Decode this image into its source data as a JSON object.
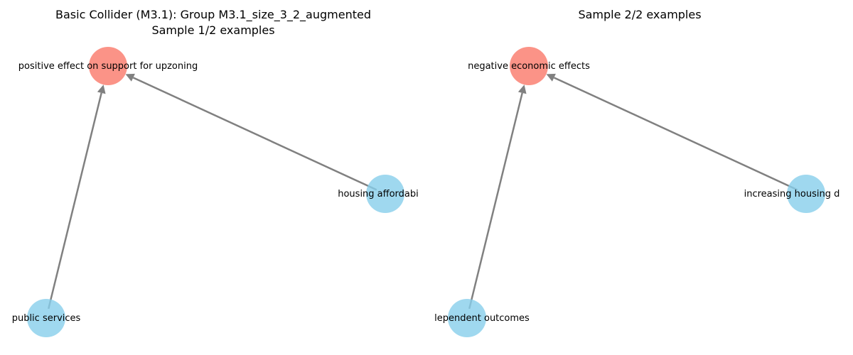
{
  "colors": {
    "effect_node": "#fa8072",
    "cause_node": "#87ceeb",
    "edge": "#808080"
  },
  "panels": [
    {
      "title_line1": "Basic Collider (M3.1): Group M3.1_size_3_2_augmented",
      "title_line2": "Sample 1/2 examples",
      "nodes": {
        "effect": "positive effect on support for upzoning",
        "cause_right": "housing affordabi",
        "cause_bottom": "public services"
      }
    },
    {
      "title_line1": "",
      "title_line2": "Sample 2/2 examples",
      "nodes": {
        "effect": "negative economic effects",
        "cause_right": "increasing housing d",
        "cause_bottom": "lependent outcomes"
      }
    }
  ]
}
